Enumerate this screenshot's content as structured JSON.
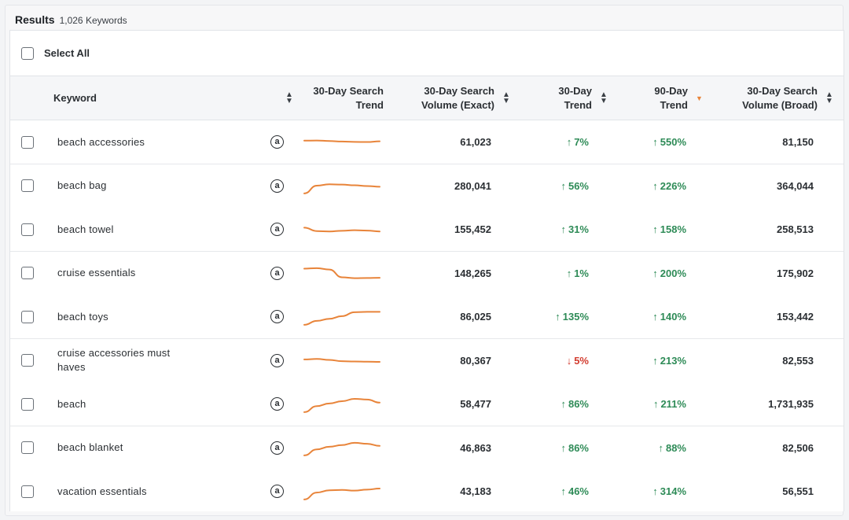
{
  "results": {
    "title": "Results",
    "count": "1,026 Keywords"
  },
  "select_all": {
    "label": "Select All"
  },
  "columns": {
    "keyword": "Keyword",
    "trend_line_1": "30-Day Search",
    "trend_line_2": "Trend",
    "vol_exact_1": "30-Day Search",
    "vol_exact_2": "Volume (Exact)",
    "t30_1": "30-Day",
    "t30_2": "Trend",
    "t90_1": "90-Day",
    "t90_2": "Trend",
    "vol_broad_1": "30-Day Search",
    "vol_broad_2": "Volume (Broad)"
  },
  "icons": {
    "marketplace": "amazon-icon",
    "sort": "sort-icon",
    "sorted_desc": "sort-desc-icon"
  },
  "colors": {
    "accent": "#e8843a",
    "up": "#2e8b57",
    "down": "#d23c2f"
  },
  "rows": [
    {
      "keyword": "beach accessories",
      "volume_exact": "61,023",
      "trend30": "7%",
      "trend30_dir": "up",
      "trend90": "550%",
      "trend90_dir": "up",
      "volume_broad": "81,150",
      "spark": [
        0.6,
        0.61,
        0.58,
        0.55,
        0.53,
        0.52,
        0.56
      ]
    },
    {
      "keyword": "beach bag",
      "volume_exact": "280,041",
      "trend30": "56%",
      "trend30_dir": "up",
      "trend90": "226%",
      "trend90_dir": "up",
      "volume_broad": "364,044",
      "spark": [
        0.05,
        0.5,
        0.58,
        0.56,
        0.52,
        0.48,
        0.44
      ]
    },
    {
      "keyword": "beach towel",
      "volume_exact": "155,452",
      "trend30": "31%",
      "trend30_dir": "up",
      "trend90": "158%",
      "trend90_dir": "up",
      "volume_broad": "258,513",
      "spark": [
        0.62,
        0.42,
        0.4,
        0.44,
        0.47,
        0.45,
        0.4
      ]
    },
    {
      "keyword": "cruise essentials",
      "volume_exact": "148,265",
      "trend30": "1%",
      "trend30_dir": "up",
      "trend90": "200%",
      "trend90_dir": "up",
      "volume_broad": "175,902",
      "spark": [
        0.75,
        0.78,
        0.7,
        0.25,
        0.2,
        0.21,
        0.22
      ]
    },
    {
      "keyword": "beach toys",
      "volume_exact": "86,025",
      "trend30": "135%",
      "trend30_dir": "up",
      "trend90": "140%",
      "trend90_dir": "up",
      "volume_broad": "153,442",
      "spark": [
        0.05,
        0.28,
        0.4,
        0.55,
        0.78,
        0.8,
        0.8
      ]
    },
    {
      "keyword": "cruise accessories must haves",
      "volume_exact": "80,367",
      "trend30": "5%",
      "trend30_dir": "down",
      "trend90": "213%",
      "trend90_dir": "up",
      "volume_broad": "82,553",
      "spark": [
        0.55,
        0.58,
        0.52,
        0.45,
        0.43,
        0.42,
        0.41
      ]
    },
    {
      "keyword": "beach",
      "volume_exact": "58,477",
      "trend30": "86%",
      "trend30_dir": "up",
      "trend90": "211%",
      "trend90_dir": "up",
      "volume_broad": "1,731,935",
      "spark": [
        0.05,
        0.4,
        0.55,
        0.68,
        0.82,
        0.78,
        0.6
      ]
    },
    {
      "keyword": "beach blanket",
      "volume_exact": "46,863",
      "trend30": "86%",
      "trend30_dir": "up",
      "trend90": "88%",
      "trend90_dir": "up",
      "volume_broad": "82,506",
      "spark": [
        0.05,
        0.4,
        0.55,
        0.65,
        0.78,
        0.72,
        0.6
      ]
    },
    {
      "keyword": "vacation essentials",
      "volume_exact": "43,183",
      "trend30": "46%",
      "trend30_dir": "up",
      "trend90": "314%",
      "trend90_dir": "up",
      "volume_broad": "56,551",
      "spark": [
        0.05,
        0.45,
        0.58,
        0.6,
        0.56,
        0.62,
        0.68
      ]
    }
  ]
}
